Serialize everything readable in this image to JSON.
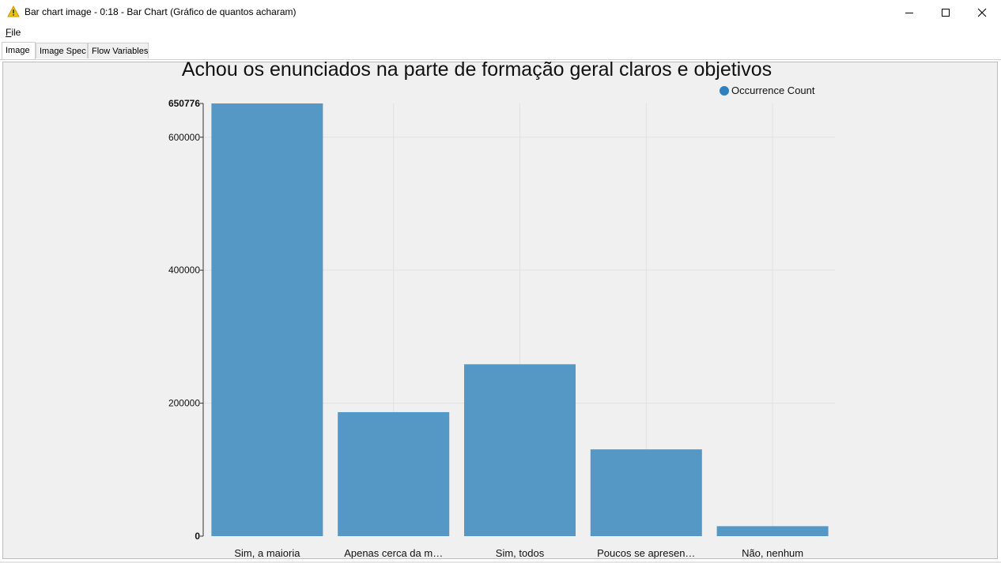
{
  "window": {
    "title": "Bar chart image - 0:18 - Bar Chart (Gráfico de quantos acharam)",
    "icon": "warning-triangle-icon",
    "controls": [
      "minimize-icon",
      "maximize-icon",
      "close-icon"
    ]
  },
  "menu": {
    "file_label": "File"
  },
  "tabs": [
    {
      "label": "Image",
      "active": true
    },
    {
      "label": "Image Spec",
      "active": false
    },
    {
      "label": "Flow Variables",
      "active": false
    }
  ],
  "colors": {
    "bar": "#5597c5",
    "legend_dot": "#2f7fc1",
    "panel_bg": "#f0f0f0",
    "grid": "#e2e2e2",
    "icon_accent": "#f2c200"
  },
  "chart_data": {
    "type": "bar",
    "title": "Achou os enunciados na parte de formação geral claros e objetivos",
    "categories": [
      "Sim, a maioria",
      "Apenas cerca da m…",
      "Sim, todos",
      "Poucos se apresen…",
      "Não, nenhum"
    ],
    "series": [
      {
        "name": "Occurrence Count",
        "values": [
          650776,
          186500,
          258500,
          130500,
          15000
        ]
      }
    ],
    "ylim": [
      0,
      650776
    ],
    "yticks": [
      0,
      200000,
      400000,
      600000,
      650776
    ],
    "ytick_labels": [
      "0",
      "200000",
      "400000",
      "600000",
      "650776"
    ],
    "grid": true,
    "legend": "top-right"
  }
}
